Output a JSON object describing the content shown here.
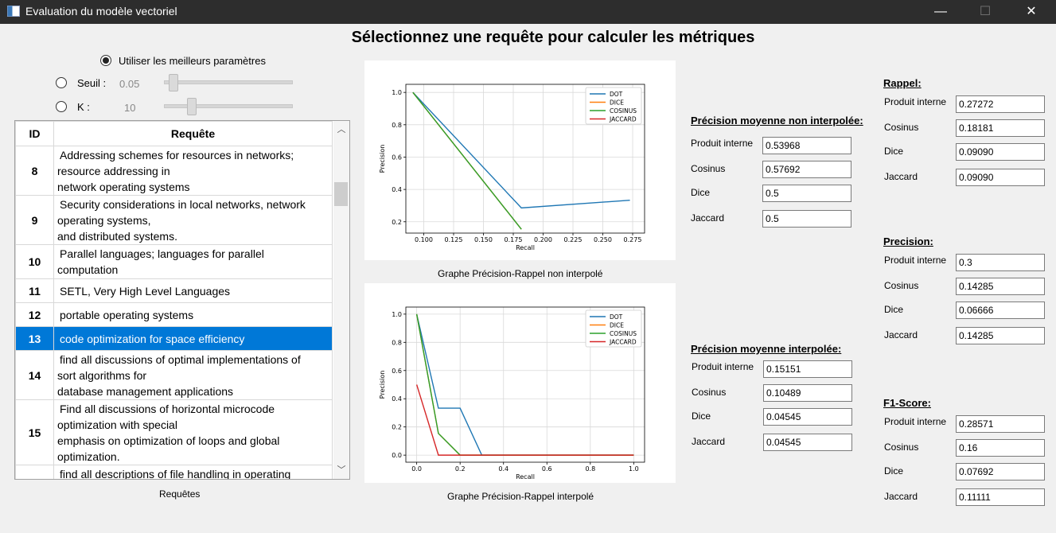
{
  "window": {
    "title": "Evaluation du modèle vectoriel",
    "minimize": "—",
    "maximize": "☐",
    "close": "✕"
  },
  "heading": "Sélectionnez une requête pour calculer les métriques",
  "options": {
    "best_params_label": "Utiliser les meilleurs paramètres",
    "seuil_label": "Seuil :",
    "seuil_value": "0.05",
    "k_label": "K :",
    "k_value": "10",
    "seuil_slider_level": 0.05,
    "k_slider_level": 0.2
  },
  "queries": {
    "caption": "Requêtes",
    "columns": [
      "ID",
      "Requête"
    ],
    "rows": [
      {
        "id": "8",
        "lines": [
          "Addressing schemes for resources in networks;",
          "resource addressing in",
          "network operating systems"
        ]
      },
      {
        "id": "9",
        "lines": [
          "Security considerations in local networks, network",
          "operating systems,",
          "and distributed systems."
        ]
      },
      {
        "id": "10",
        "lines": [
          "Parallel languages; languages for parallel",
          "computation"
        ]
      },
      {
        "id": "11",
        "lines": [
          "SETL, Very High Level Languages"
        ]
      },
      {
        "id": "12",
        "lines": [
          "portable operating systems"
        ]
      },
      {
        "id": "13",
        "lines": [
          "code optimization for space efficiency"
        ],
        "selected": true
      },
      {
        "id": "14",
        "lines": [
          "find all discussions of optimal implementations of",
          "sort algorithms for",
          "database management applications"
        ]
      },
      {
        "id": "15",
        "lines": [
          "Find all discussions of horizontal microcode",
          "optimization with special",
          "emphasis on optimization of loops and global",
          "optimization."
        ]
      },
      {
        "id": "",
        "lines": [
          "find all descriptions of file handling in operating"
        ]
      }
    ]
  },
  "chart_data": [
    {
      "type": "line",
      "caption": "Graphe Précision-Rappel non interpolé",
      "xlabel": "Recall",
      "ylabel": "Precision",
      "xlim": [
        0.085,
        0.285
      ],
      "ylim": [
        0.13,
        1.05
      ],
      "xticks": [
        "0.100",
        "0.125",
        "0.150",
        "0.175",
        "0.200",
        "0.225",
        "0.250",
        "0.275"
      ],
      "yticks": [
        "0.2",
        "0.4",
        "0.6",
        "0.8",
        "1.0"
      ],
      "grid": true,
      "legend": "top-right",
      "series": [
        {
          "name": "DOT",
          "color": "#1f77b4",
          "x": [
            0.0909,
            0.1818,
            0.2727
          ],
          "y": [
            1.0,
            0.2857,
            0.3333
          ]
        },
        {
          "name": "DICE",
          "color": "#ff7f0e",
          "x": [
            0.0909,
            0.1818
          ],
          "y": [
            1.0,
            0.1538
          ]
        },
        {
          "name": "COSINUS",
          "color": "#2ca02c",
          "x": [
            0.0909,
            0.1818
          ],
          "y": [
            1.0,
            0.1538
          ]
        },
        {
          "name": "JACCARD",
          "color": "#d62728",
          "x": [
            0.0909
          ],
          "y": [
            1.0
          ]
        }
      ]
    },
    {
      "type": "line",
      "caption": "Graphe Précision-Rappel interpolé",
      "xlabel": "Recall",
      "ylabel": "Precision",
      "xlim": [
        -0.05,
        1.05
      ],
      "ylim": [
        -0.05,
        1.05
      ],
      "xticks": [
        "0.0",
        "0.2",
        "0.4",
        "0.6",
        "0.8",
        "1.0"
      ],
      "yticks": [
        "0.0",
        "0.2",
        "0.4",
        "0.6",
        "0.8",
        "1.0"
      ],
      "grid": true,
      "legend": "top-right",
      "series": [
        {
          "name": "DOT",
          "color": "#1f77b4",
          "x": [
            0,
            0.1,
            0.2,
            0.3,
            0.4,
            0.5,
            0.6,
            0.7,
            0.8,
            0.9,
            1.0
          ],
          "y": [
            1.0,
            0.333,
            0.333,
            0,
            0,
            0,
            0,
            0,
            0,
            0,
            0
          ]
        },
        {
          "name": "DICE",
          "color": "#ff7f0e",
          "x": [
            0,
            0.1,
            0.2,
            0.3,
            0.4,
            0.5,
            0.6,
            0.7,
            0.8,
            0.9,
            1.0
          ],
          "y": [
            1.0,
            0.154,
            0,
            0,
            0,
            0,
            0,
            0,
            0,
            0,
            0
          ]
        },
        {
          "name": "COSINUS",
          "color": "#2ca02c",
          "x": [
            0,
            0.1,
            0.2,
            0.3,
            0.4,
            0.5,
            0.6,
            0.7,
            0.8,
            0.9,
            1.0
          ],
          "y": [
            1.0,
            0.154,
            0,
            0,
            0,
            0,
            0,
            0,
            0,
            0,
            0
          ]
        },
        {
          "name": "JACCARD",
          "color": "#d62728",
          "x": [
            0,
            0.1,
            0.2,
            0.3,
            0.4,
            0.5,
            0.6,
            0.7,
            0.8,
            0.9,
            1.0
          ],
          "y": [
            0.5,
            0,
            0,
            0,
            0,
            0,
            0,
            0,
            0,
            0,
            0
          ]
        }
      ]
    }
  ],
  "metrics": {
    "non_interp": {
      "title": "Précision moyenne non interpolée:",
      "items": [
        {
          "label": "Produit interne",
          "value": "0.53968"
        },
        {
          "label": "Cosinus",
          "value": "0.57692"
        },
        {
          "label": "Dice",
          "value": "0.5"
        },
        {
          "label": "Jaccard",
          "value": "0.5"
        }
      ]
    },
    "interp": {
      "title": "Précision moyenne interpolée:",
      "items": [
        {
          "label": "Produit interne",
          "value": "0.15151"
        },
        {
          "label": "Cosinus",
          "value": "0.10489"
        },
        {
          "label": "Dice",
          "value": "0.04545"
        },
        {
          "label": "Jaccard",
          "value": "0.04545"
        }
      ]
    },
    "rappel": {
      "title": "Rappel:",
      "items": [
        {
          "label": "Produit interne",
          "value": "0.27272"
        },
        {
          "label": "Cosinus",
          "value": "0.18181"
        },
        {
          "label": "Dice",
          "value": "0.09090"
        },
        {
          "label": "Jaccard",
          "value": "0.09090"
        }
      ]
    },
    "precision": {
      "title": "Precision:",
      "items": [
        {
          "label": "Produit interne",
          "value": "0.3"
        },
        {
          "label": "Cosinus",
          "value": "0.14285"
        },
        {
          "label": "Dice",
          "value": "0.06666"
        },
        {
          "label": "Jaccard",
          "value": "0.14285"
        }
      ]
    },
    "f1": {
      "title": "F1-Score:",
      "items": [
        {
          "label": "Produit interne",
          "value": "0.28571"
        },
        {
          "label": "Cosinus",
          "value": "0.16"
        },
        {
          "label": "Dice",
          "value": "0.07692"
        },
        {
          "label": "Jaccard",
          "value": "0.11111"
        }
      ]
    }
  }
}
